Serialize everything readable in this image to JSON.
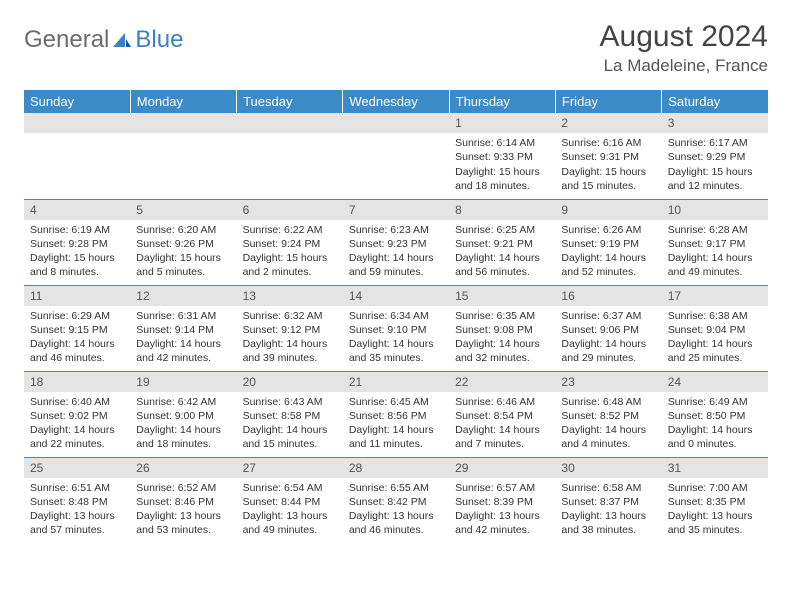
{
  "logo": {
    "text1": "General",
    "text2": "Blue"
  },
  "title": "August 2024",
  "location": "La Madeleine, France",
  "colors": {
    "header_bg": "#3b8bc9",
    "header_text": "#ffffff",
    "daynum_bg": "#e4e4e4",
    "rule": "#3b8bc9",
    "body_bg": "#ffffff"
  },
  "weekdays": [
    "Sunday",
    "Monday",
    "Tuesday",
    "Wednesday",
    "Thursday",
    "Friday",
    "Saturday"
  ],
  "weeks": [
    [
      null,
      null,
      null,
      null,
      {
        "n": "1",
        "sr": "Sunrise: 6:14 AM",
        "ss": "Sunset: 9:33 PM",
        "dl": "Daylight: 15 hours and 18 minutes."
      },
      {
        "n": "2",
        "sr": "Sunrise: 6:16 AM",
        "ss": "Sunset: 9:31 PM",
        "dl": "Daylight: 15 hours and 15 minutes."
      },
      {
        "n": "3",
        "sr": "Sunrise: 6:17 AM",
        "ss": "Sunset: 9:29 PM",
        "dl": "Daylight: 15 hours and 12 minutes."
      }
    ],
    [
      {
        "n": "4",
        "sr": "Sunrise: 6:19 AM",
        "ss": "Sunset: 9:28 PM",
        "dl": "Daylight: 15 hours and 8 minutes."
      },
      {
        "n": "5",
        "sr": "Sunrise: 6:20 AM",
        "ss": "Sunset: 9:26 PM",
        "dl": "Daylight: 15 hours and 5 minutes."
      },
      {
        "n": "6",
        "sr": "Sunrise: 6:22 AM",
        "ss": "Sunset: 9:24 PM",
        "dl": "Daylight: 15 hours and 2 minutes."
      },
      {
        "n": "7",
        "sr": "Sunrise: 6:23 AM",
        "ss": "Sunset: 9:23 PM",
        "dl": "Daylight: 14 hours and 59 minutes."
      },
      {
        "n": "8",
        "sr": "Sunrise: 6:25 AM",
        "ss": "Sunset: 9:21 PM",
        "dl": "Daylight: 14 hours and 56 minutes."
      },
      {
        "n": "9",
        "sr": "Sunrise: 6:26 AM",
        "ss": "Sunset: 9:19 PM",
        "dl": "Daylight: 14 hours and 52 minutes."
      },
      {
        "n": "10",
        "sr": "Sunrise: 6:28 AM",
        "ss": "Sunset: 9:17 PM",
        "dl": "Daylight: 14 hours and 49 minutes."
      }
    ],
    [
      {
        "n": "11",
        "sr": "Sunrise: 6:29 AM",
        "ss": "Sunset: 9:15 PM",
        "dl": "Daylight: 14 hours and 46 minutes."
      },
      {
        "n": "12",
        "sr": "Sunrise: 6:31 AM",
        "ss": "Sunset: 9:14 PM",
        "dl": "Daylight: 14 hours and 42 minutes."
      },
      {
        "n": "13",
        "sr": "Sunrise: 6:32 AM",
        "ss": "Sunset: 9:12 PM",
        "dl": "Daylight: 14 hours and 39 minutes."
      },
      {
        "n": "14",
        "sr": "Sunrise: 6:34 AM",
        "ss": "Sunset: 9:10 PM",
        "dl": "Daylight: 14 hours and 35 minutes."
      },
      {
        "n": "15",
        "sr": "Sunrise: 6:35 AM",
        "ss": "Sunset: 9:08 PM",
        "dl": "Daylight: 14 hours and 32 minutes."
      },
      {
        "n": "16",
        "sr": "Sunrise: 6:37 AM",
        "ss": "Sunset: 9:06 PM",
        "dl": "Daylight: 14 hours and 29 minutes."
      },
      {
        "n": "17",
        "sr": "Sunrise: 6:38 AM",
        "ss": "Sunset: 9:04 PM",
        "dl": "Daylight: 14 hours and 25 minutes."
      }
    ],
    [
      {
        "n": "18",
        "sr": "Sunrise: 6:40 AM",
        "ss": "Sunset: 9:02 PM",
        "dl": "Daylight: 14 hours and 22 minutes."
      },
      {
        "n": "19",
        "sr": "Sunrise: 6:42 AM",
        "ss": "Sunset: 9:00 PM",
        "dl": "Daylight: 14 hours and 18 minutes."
      },
      {
        "n": "20",
        "sr": "Sunrise: 6:43 AM",
        "ss": "Sunset: 8:58 PM",
        "dl": "Daylight: 14 hours and 15 minutes."
      },
      {
        "n": "21",
        "sr": "Sunrise: 6:45 AM",
        "ss": "Sunset: 8:56 PM",
        "dl": "Daylight: 14 hours and 11 minutes."
      },
      {
        "n": "22",
        "sr": "Sunrise: 6:46 AM",
        "ss": "Sunset: 8:54 PM",
        "dl": "Daylight: 14 hours and 7 minutes."
      },
      {
        "n": "23",
        "sr": "Sunrise: 6:48 AM",
        "ss": "Sunset: 8:52 PM",
        "dl": "Daylight: 14 hours and 4 minutes."
      },
      {
        "n": "24",
        "sr": "Sunrise: 6:49 AM",
        "ss": "Sunset: 8:50 PM",
        "dl": "Daylight: 14 hours and 0 minutes."
      }
    ],
    [
      {
        "n": "25",
        "sr": "Sunrise: 6:51 AM",
        "ss": "Sunset: 8:48 PM",
        "dl": "Daylight: 13 hours and 57 minutes."
      },
      {
        "n": "26",
        "sr": "Sunrise: 6:52 AM",
        "ss": "Sunset: 8:46 PM",
        "dl": "Daylight: 13 hours and 53 minutes."
      },
      {
        "n": "27",
        "sr": "Sunrise: 6:54 AM",
        "ss": "Sunset: 8:44 PM",
        "dl": "Daylight: 13 hours and 49 minutes."
      },
      {
        "n": "28",
        "sr": "Sunrise: 6:55 AM",
        "ss": "Sunset: 8:42 PM",
        "dl": "Daylight: 13 hours and 46 minutes."
      },
      {
        "n": "29",
        "sr": "Sunrise: 6:57 AM",
        "ss": "Sunset: 8:39 PM",
        "dl": "Daylight: 13 hours and 42 minutes."
      },
      {
        "n": "30",
        "sr": "Sunrise: 6:58 AM",
        "ss": "Sunset: 8:37 PM",
        "dl": "Daylight: 13 hours and 38 minutes."
      },
      {
        "n": "31",
        "sr": "Sunrise: 7:00 AM",
        "ss": "Sunset: 8:35 PM",
        "dl": "Daylight: 13 hours and 35 minutes."
      }
    ]
  ]
}
